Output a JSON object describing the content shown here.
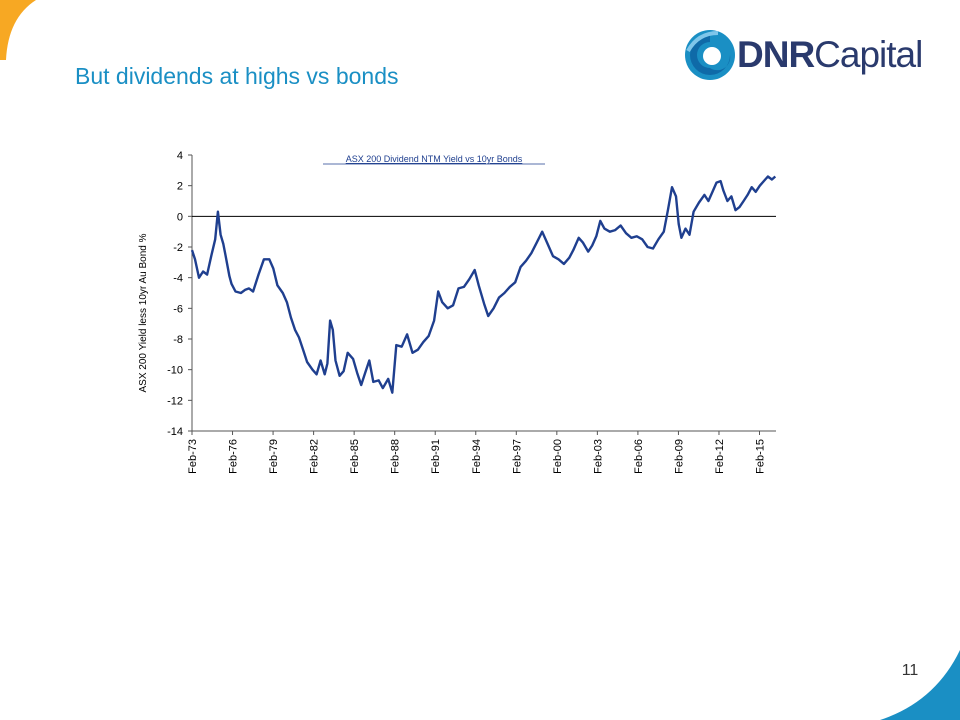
{
  "slide": {
    "title": "But dividends at highs vs bonds",
    "page_number": "11",
    "colors": {
      "title": "#1a8fc4",
      "accent_orange": "#f7a823",
      "accent_blue": "#1a8fc4",
      "logo_text": "#2a3a6d"
    }
  },
  "logo": {
    "brand": "DNR",
    "suffix": "Capital",
    "icon": "swirl-logo-icon"
  },
  "chart_data": {
    "type": "line",
    "title": "ASX 200 Dividend NTM Yield vs 10yr Bonds",
    "xlabel": "",
    "ylabel": "ASX 200 Yield less 10yr Au Bond %",
    "ylim": [
      -14,
      4
    ],
    "xlim": [
      1973.08,
      2016.3
    ],
    "yticks": [
      4,
      2,
      0,
      -2,
      -4,
      -6,
      -8,
      -10,
      -12,
      -14
    ],
    "xtick_labels": [
      "Feb-73",
      "Feb-76",
      "Feb-79",
      "Feb-82",
      "Feb-85",
      "Feb-88",
      "Feb-91",
      "Feb-94",
      "Feb-97",
      "Feb-00",
      "Feb-03",
      "Feb-06",
      "Feb-09",
      "Feb-12",
      "Feb-15"
    ],
    "grid": false,
    "reference_line": 0,
    "series_color": "#1f3f8f",
    "series": [
      {
        "x": [
          1973.08,
          1973.3,
          1973.6,
          1973.9,
          1974.2,
          1974.5,
          1974.8,
          1975.0,
          1975.2,
          1975.4,
          1975.55,
          1975.7,
          1975.85,
          1976.0,
          1976.3,
          1976.7,
          1977.0,
          1977.3,
          1977.6,
          1978.0,
          1978.4,
          1978.8,
          1979.1,
          1979.4,
          1979.8,
          1980.1,
          1980.4,
          1980.7,
          1981.0,
          1981.3,
          1981.6,
          1982.0,
          1982.3,
          1982.6,
          1982.9,
          1983.1,
          1983.3,
          1983.5,
          1983.7,
          1984.0,
          1984.3,
          1984.6,
          1985.0,
          1985.3,
          1985.6,
          1985.9,
          1986.2,
          1986.5,
          1986.9,
          1987.2,
          1987.6,
          1987.9,
          1988.2,
          1988.6,
          1989.0,
          1989.4,
          1989.8,
          1990.2,
          1990.6,
          1991.0,
          1991.3,
          1991.6,
          1992.0,
          1992.4,
          1992.8,
          1993.2,
          1993.6,
          1994.0,
          1994.3,
          1994.7,
          1995.0,
          1995.4,
          1995.8,
          1996.2,
          1996.6,
          1997.0,
          1997.4,
          1997.8,
          1998.2,
          1998.6,
          1999.0,
          1999.4,
          1999.8,
          2000.2,
          2000.6,
          2001.0,
          2001.3,
          2001.7,
          2002.0,
          2002.4,
          2002.7,
          2003.0,
          2003.3,
          2003.6,
          2004.0,
          2004.4,
          2004.8,
          2005.2,
          2005.6,
          2006.0,
          2006.4,
          2006.8,
          2007.2,
          2007.6,
          2008.0,
          2008.3,
          2008.6,
          2008.9,
          2009.1,
          2009.3,
          2009.6,
          2009.9,
          2010.2,
          2010.6,
          2011.0,
          2011.3,
          2011.6,
          2011.9,
          2012.2,
          2012.4,
          2012.7,
          2013.0,
          2013.3,
          2013.6,
          2013.9,
          2014.2,
          2014.5,
          2014.8,
          2015.1,
          2015.4,
          2015.7,
          2016.0,
          2016.25
        ],
        "y": [
          -2.2,
          -2.8,
          -4.0,
          -3.6,
          -3.8,
          -2.6,
          -1.5,
          0.3,
          -1.2,
          -1.8,
          -2.5,
          -3.2,
          -3.9,
          -4.4,
          -4.9,
          -5.0,
          -4.8,
          -4.7,
          -4.9,
          -3.8,
          -2.8,
          -2.8,
          -3.4,
          -4.5,
          -5.0,
          -5.6,
          -6.6,
          -7.4,
          -7.9,
          -8.7,
          -9.5,
          -10.0,
          -10.3,
          -9.4,
          -10.3,
          -9.6,
          -6.8,
          -7.4,
          -9.4,
          -10.4,
          -10.1,
          -8.9,
          -9.3,
          -10.2,
          -11.0,
          -10.2,
          -9.4,
          -10.8,
          -10.7,
          -11.2,
          -10.6,
          -11.5,
          -8.4,
          -8.5,
          -7.7,
          -8.9,
          -8.7,
          -8.2,
          -7.8,
          -6.8,
          -4.9,
          -5.6,
          -6.0,
          -5.8,
          -4.7,
          -4.6,
          -4.1,
          -3.5,
          -4.5,
          -5.7,
          -6.5,
          -6.0,
          -5.3,
          -5.0,
          -4.6,
          -4.3,
          -3.3,
          -2.9,
          -2.4,
          -1.7,
          -1.0,
          -1.8,
          -2.6,
          -2.8,
          -3.1,
          -2.7,
          -2.2,
          -1.4,
          -1.7,
          -2.3,
          -1.9,
          -1.3,
          -0.3,
          -0.8,
          -1.0,
          -0.9,
          -0.6,
          -1.1,
          -1.4,
          -1.3,
          -1.5,
          -2.0,
          -2.1,
          -1.5,
          -1.0,
          0.4,
          1.9,
          1.3,
          -0.5,
          -1.4,
          -0.8,
          -1.2,
          0.3,
          0.9,
          1.4,
          1.0,
          1.6,
          2.2,
          2.3,
          1.7,
          1.0,
          1.3,
          0.4,
          0.6,
          1.0,
          1.4,
          1.9,
          1.6,
          2.0,
          2.3,
          2.6,
          2.4,
          2.6
        ]
      }
    ]
  }
}
